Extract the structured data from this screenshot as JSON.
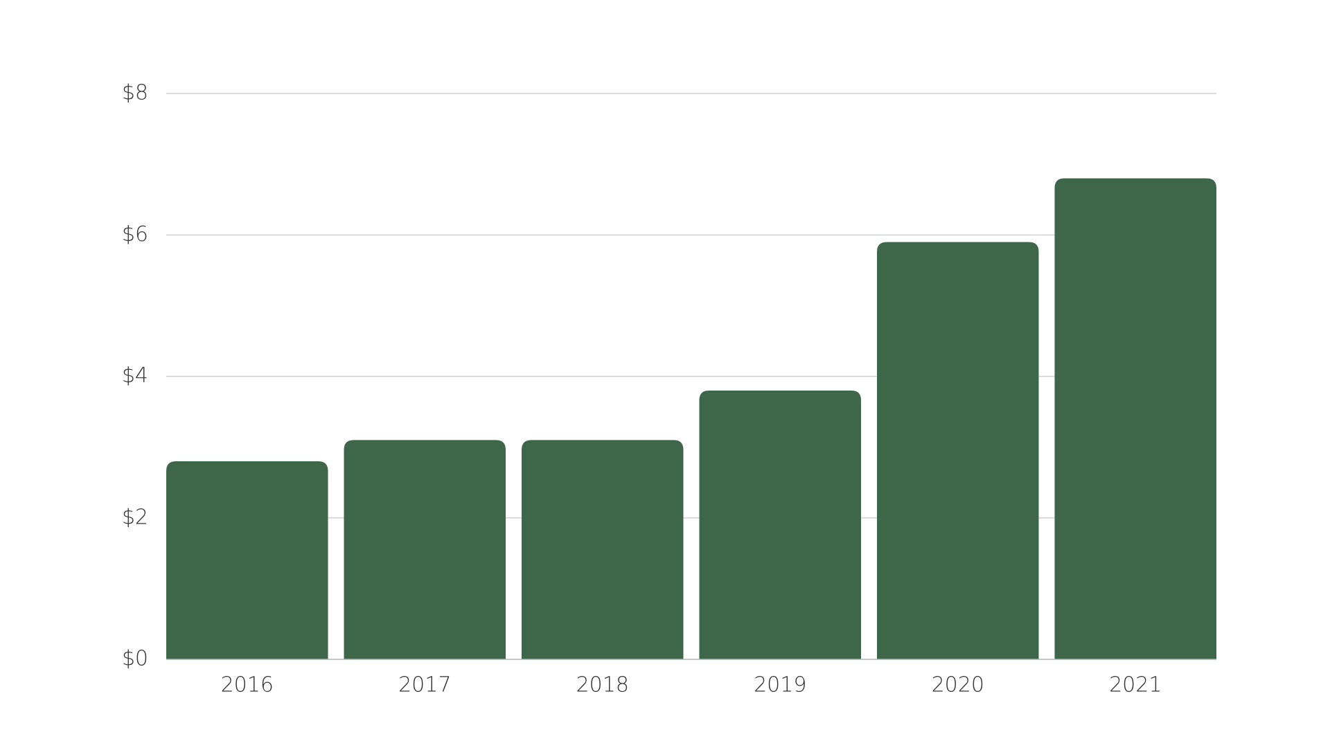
{
  "chart_data": {
    "type": "bar",
    "title": "",
    "xlabel": "",
    "ylabel": "",
    "categories": [
      "2016",
      "2017",
      "2018",
      "2019",
      "2020",
      "2021"
    ],
    "values": [
      2.8,
      3.1,
      3.1,
      3.8,
      5.9,
      6.8
    ],
    "ylim": [
      0,
      8
    ],
    "yticks": [
      0,
      2,
      4,
      6,
      8
    ],
    "ytick_labels": [
      "$0",
      "$2",
      "$4",
      "$6",
      "$8"
    ],
    "grid": true,
    "legend": "none",
    "bar_color": "#3e6749"
  }
}
